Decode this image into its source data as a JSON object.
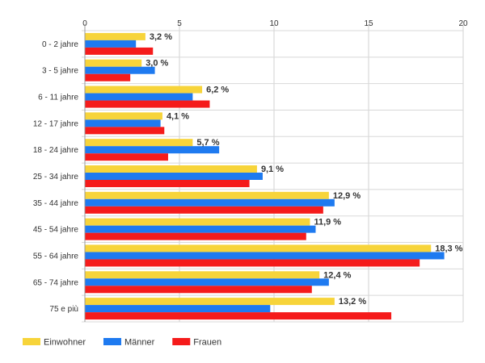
{
  "chart_data": {
    "type": "bar",
    "orientation": "horizontal",
    "categories": [
      "0 - 2 jahre",
      "3 - 5 jahre",
      "6 - 11 jahre",
      "12 - 17 jahre",
      "18 - 24 jahre",
      "25 - 34 jahre",
      "35 - 44 jahre",
      "45 - 54 jahre",
      "55 - 64 jahre",
      "65 - 74 jahre",
      "75 e più"
    ],
    "series": [
      {
        "name": "Einwohner",
        "color": "#f7d43a",
        "values": [
          3.2,
          3.0,
          6.2,
          4.1,
          5.7,
          9.1,
          12.9,
          11.9,
          18.3,
          12.4,
          13.2
        ],
        "labels": [
          "3,2 %",
          "3,0 %",
          "6,2 %",
          "4,1 %",
          "5,7 %",
          "9,1 %",
          "12,9 %",
          "11,9 %",
          "18,3 %",
          "12,4 %",
          "13,2 %"
        ]
      },
      {
        "name": "Männer",
        "color": "#1e7af0",
        "values": [
          2.7,
          3.7,
          5.7,
          4.0,
          7.1,
          9.4,
          13.2,
          12.2,
          19.0,
          12.9,
          9.8
        ]
      },
      {
        "name": "Frauen",
        "color": "#f51b1b",
        "values": [
          3.6,
          2.4,
          6.6,
          4.2,
          4.4,
          8.7,
          12.6,
          11.7,
          17.7,
          12.0,
          16.2
        ]
      }
    ],
    "xlim": [
      0,
      20
    ],
    "xticks": [
      "0",
      "5",
      "10",
      "15",
      "20"
    ],
    "grid": true,
    "legend_position": "bottom-left",
    "title": "",
    "xlabel": "",
    "ylabel": ""
  }
}
